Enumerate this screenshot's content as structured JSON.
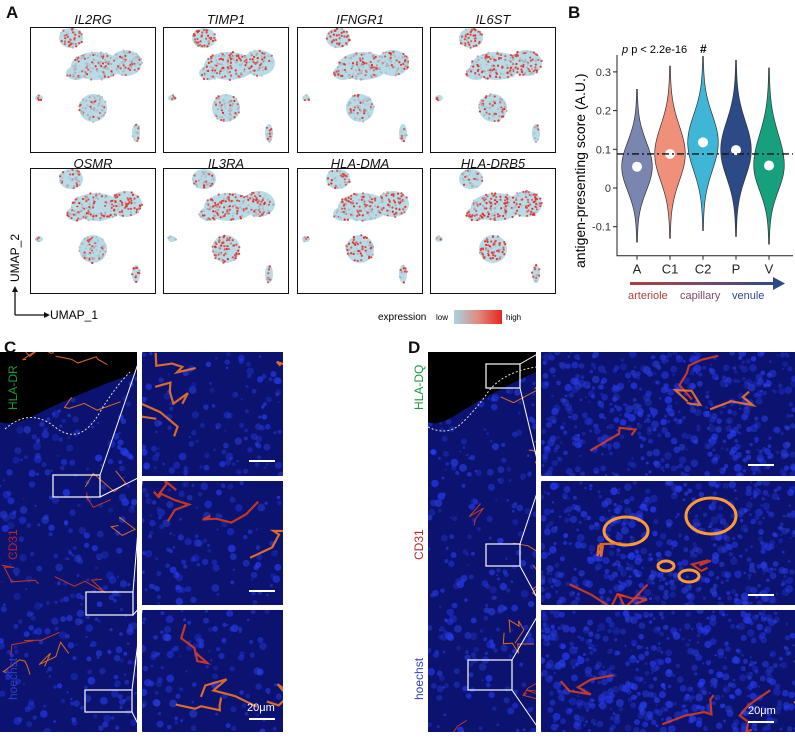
{
  "panels": {
    "a": "A",
    "b": "B",
    "c": "C",
    "d": "D"
  },
  "umap": {
    "genes": [
      "IL2RG",
      "TIMP1",
      "IFNGR1",
      "IL6ST",
      "OSMR",
      "IL3RA",
      "HLA-DMA",
      "HLA-DRB5"
    ],
    "axis_x": "UMAP_1",
    "axis_y": "UMAP_2",
    "legend": {
      "title": "expression",
      "low": "low",
      "high": "high",
      "low_color": "#a8d4e2",
      "high_color": "#e8261c"
    }
  },
  "chart_data": {
    "type": "violin",
    "categories": [
      "A",
      "C1",
      "C2",
      "P",
      "V"
    ],
    "ylabel": "antigen-presenting score (A.U.)",
    "ylim": [
      -0.15,
      0.34
    ],
    "yticks": [
      -0.1,
      0,
      0.1,
      0.2,
      0.3
    ],
    "ytick_labels": [
      "-0.1",
      "0",
      "0.1",
      "0.2",
      "0.3"
    ],
    "medians": [
      0.055,
      0.088,
      0.118,
      0.098,
      0.058
    ],
    "min": [
      -0.14,
      -0.13,
      -0.11,
      -0.125,
      -0.145
    ],
    "max": [
      0.255,
      0.315,
      0.34,
      0.33,
      0.31
    ],
    "reference_line": 0.088,
    "colors": [
      "#7b86b0",
      "#f0907a",
      "#3fb6d6",
      "#2c4a86",
      "#17a07e"
    ],
    "annotation_p": "p < 2.2e-16",
    "annotation_hash": "#",
    "gradient_labels": [
      "arteriole",
      "capillary",
      "venule"
    ],
    "gradient_colors": [
      "#b0403a",
      "#7a4a6a",
      "#2c4a86"
    ]
  },
  "microscopy": {
    "c": {
      "stains": [
        "HLA-DR",
        "CD31",
        "hoechst"
      ],
      "scale": "20μm"
    },
    "d": {
      "stains": [
        "HLA-DQ",
        "CD31",
        "hoechst"
      ],
      "scale": "20μm"
    },
    "stain_colors": [
      "#1a9a3a",
      "#c0202a",
      "#1a2aa0"
    ]
  }
}
